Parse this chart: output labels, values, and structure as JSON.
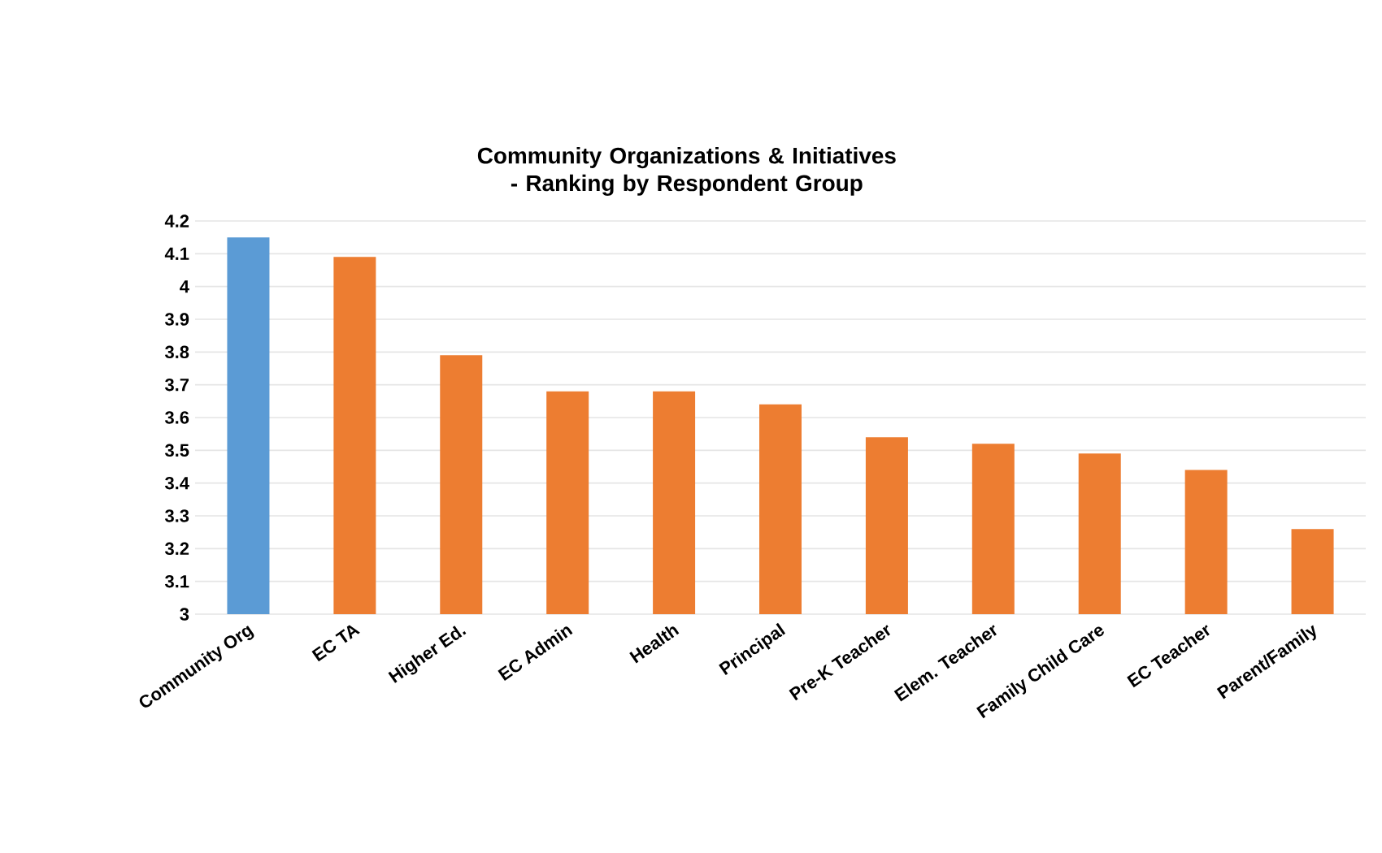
{
  "chart_data": {
    "type": "bar",
    "title": "Community Organizations & Initiatives - Ranking by Respondent Group",
    "categories": [
      "Community Org",
      "EC TA",
      "Higher Ed.",
      "EC Admin",
      "Health",
      "Principal",
      "Pre-K Teacher",
      "Elem. Teacher",
      "Family Child Care",
      "EC Teacher",
      "Parent/Family"
    ],
    "values": [
      4.15,
      4.09,
      3.79,
      3.68,
      3.68,
      3.64,
      3.54,
      3.52,
      3.49,
      3.44,
      3.26
    ],
    "colors": [
      "#5b9bd5",
      "#ed7d31",
      "#ed7d31",
      "#ed7d31",
      "#ed7d31",
      "#ed7d31",
      "#ed7d31",
      "#ed7d31",
      "#ed7d31",
      "#ed7d31",
      "#ed7d31"
    ],
    "ylim": [
      3,
      4.2
    ],
    "yticks": [
      3,
      3.1,
      3.2,
      3.3,
      3.4,
      3.5,
      3.6,
      3.7,
      3.8,
      3.9,
      4,
      4.1,
      4.2
    ],
    "grid": "y"
  }
}
